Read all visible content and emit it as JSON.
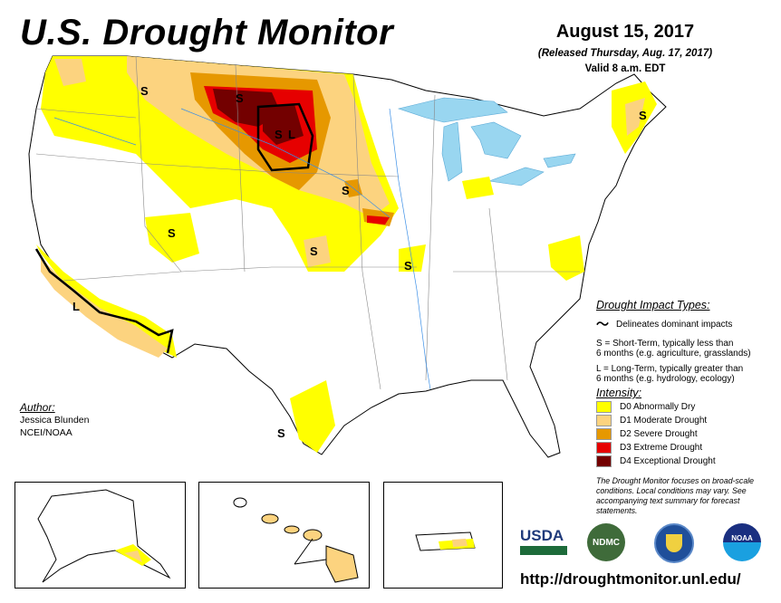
{
  "header": {
    "title": "U.S. Drought Monitor",
    "date": "August 15, 2017",
    "released": "(Released Thursday, Aug. 17, 2017)",
    "valid": "Valid 8 a.m. EDT"
  },
  "map_labels": {
    "short_term": "S",
    "long_term": "L"
  },
  "legend": {
    "impact_title": "Drought Impact Types:",
    "delineates": "Delineates dominant impacts",
    "s_line1": "S = Short-Term, typically less than",
    "s_line2": "6 months (e.g. agriculture, grasslands)",
    "l_line1": "L = Long-Term, typically greater than",
    "l_line2": "6 months (e.g. hydrology, ecology)",
    "intensity_title": "Intensity:",
    "categories": [
      {
        "label": "D0 Abnormally Dry",
        "color": "#FFFF00"
      },
      {
        "label": "D1 Moderate Drought",
        "color": "#FCD37F"
      },
      {
        "label": "D2 Severe Drought",
        "color": "#E69800"
      },
      {
        "label": "D3 Extreme Drought",
        "color": "#E60000"
      },
      {
        "label": "D4 Exceptional Drought",
        "color": "#730000"
      }
    ],
    "note": "The Drought Monitor focuses on broad-scale conditions. Local conditions may vary. See accompanying text summary for forecast statements."
  },
  "author": {
    "heading": "Author:",
    "name": "Jessica Blunden",
    "org": "NCEI/NOAA"
  },
  "logos": {
    "usda": "USDA",
    "ndmc": "NDMC",
    "noaa": "NOAA"
  },
  "url": "http://droughtmonitor.unl.edu/"
}
